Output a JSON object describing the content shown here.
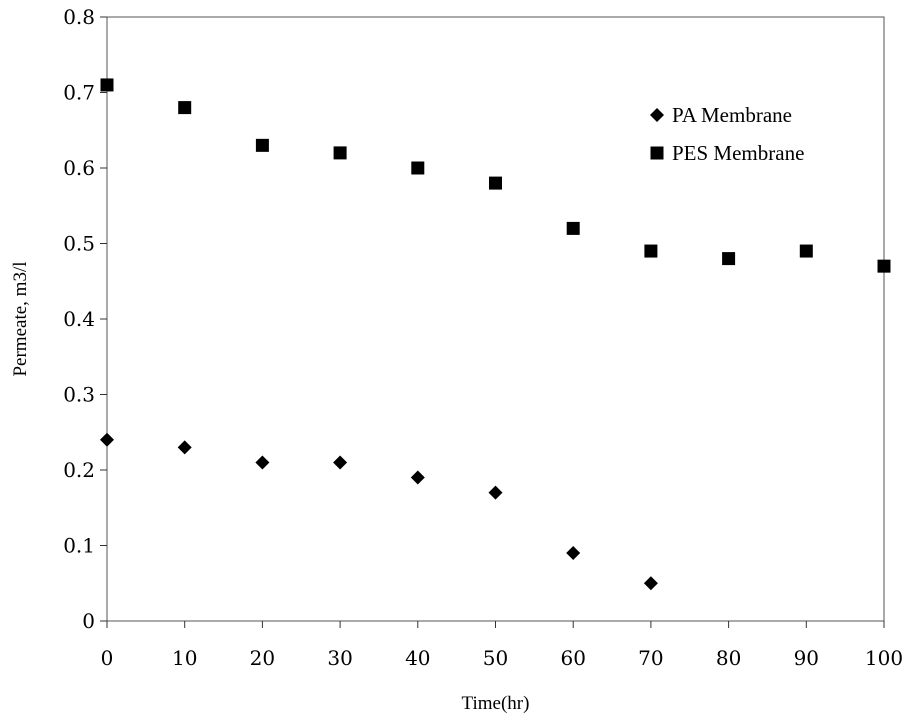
{
  "chart_data": {
    "type": "scatter",
    "title": "",
    "xlabel": "Time(hr)",
    "ylabel": "Permeate, m3/l",
    "xlim": [
      0,
      100
    ],
    "ylim": [
      0,
      0.8
    ],
    "x_ticks": [
      "0",
      "10",
      "20",
      "30",
      "40",
      "50",
      "60",
      "70",
      "80",
      "90",
      "100"
    ],
    "y_ticks": [
      "0",
      "0.1",
      "0.2",
      "0.3",
      "0.4",
      "0.5",
      "0.6",
      "0.7",
      "0.8"
    ],
    "grid": false,
    "legend_position": "top-right",
    "series": [
      {
        "name": "PA Membrane",
        "marker": "diamond",
        "color": "#000000",
        "x": [
          0,
          10,
          20,
          30,
          40,
          50,
          60,
          70
        ],
        "y": [
          0.24,
          0.23,
          0.21,
          0.21,
          0.19,
          0.17,
          0.09,
          0.05
        ]
      },
      {
        "name": "PES Membrane",
        "marker": "square",
        "color": "#000000",
        "x": [
          0,
          10,
          20,
          30,
          40,
          50,
          60,
          70,
          80,
          90,
          100
        ],
        "y": [
          0.71,
          0.68,
          0.63,
          0.62,
          0.6,
          0.58,
          0.52,
          0.49,
          0.48,
          0.49,
          0.47
        ]
      }
    ]
  }
}
